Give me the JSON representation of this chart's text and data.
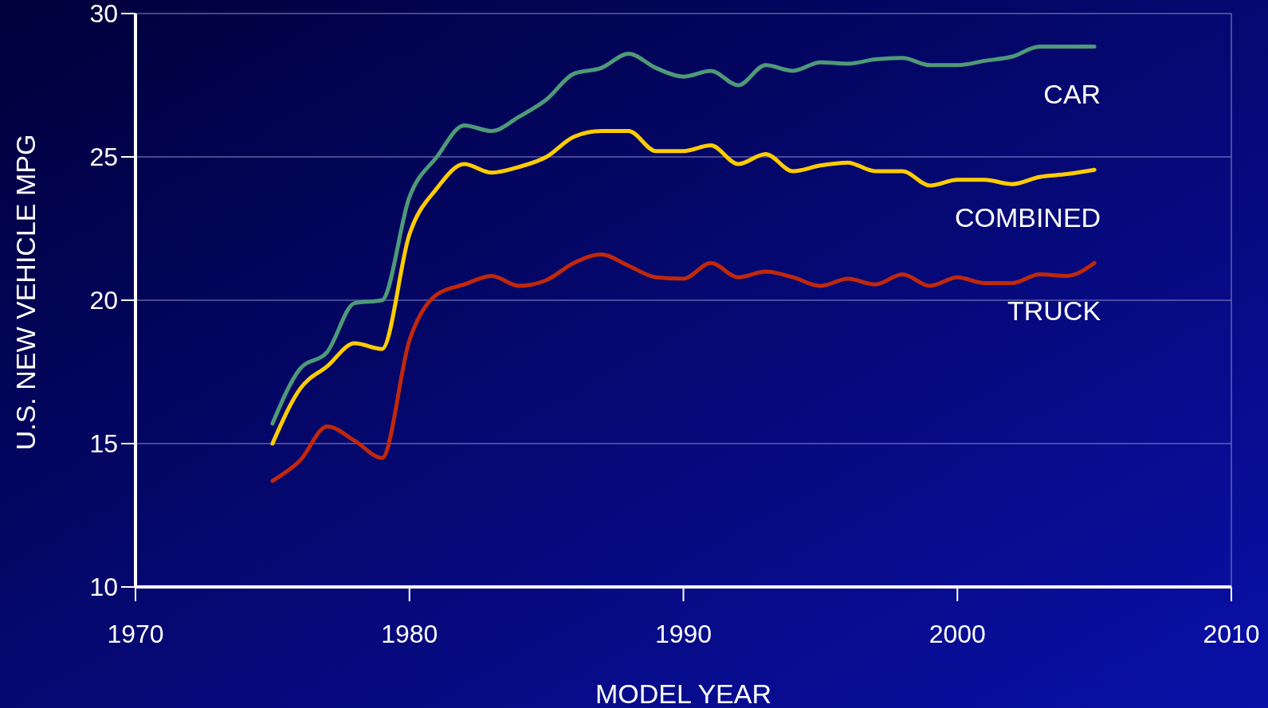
{
  "chart_data": {
    "type": "line",
    "xlabel": "MODEL YEAR",
    "ylabel": "U.S. NEW VEHICLE MPG",
    "x": [
      1975,
      1976,
      1977,
      1978,
      1979,
      1980,
      1981,
      1982,
      1983,
      1984,
      1985,
      1986,
      1987,
      1988,
      1989,
      1990,
      1991,
      1992,
      1993,
      1994,
      1995,
      1996,
      1997,
      1998,
      1999,
      2000,
      2001,
      2002,
      2003,
      2004,
      2005
    ],
    "xlim": [
      1970,
      2010
    ],
    "xticks": [
      1970,
      1980,
      1990,
      2000,
      2010
    ],
    "ylim": [
      10,
      30
    ],
    "yticks": [
      10,
      15,
      20,
      25,
      30
    ],
    "grid": "y",
    "line_style": "solid",
    "marker": "none",
    "series": [
      {
        "name": "CAR",
        "color": "#4e9a78",
        "values": [
          15.7,
          17.6,
          18.2,
          19.9,
          20.0,
          23.6,
          25.0,
          26.1,
          25.9,
          26.4,
          27.0,
          27.9,
          28.1,
          28.6,
          28.1,
          27.8,
          28.0,
          27.5,
          28.2,
          28.0,
          28.3,
          28.25,
          28.4,
          28.45,
          28.2,
          28.2,
          28.35,
          28.5,
          28.85,
          28.85,
          28.85
        ]
      },
      {
        "name": "COMBINED",
        "color": "#ffcc00",
        "values": [
          15.0,
          16.9,
          17.7,
          18.5,
          18.3,
          22.3,
          23.9,
          24.75,
          24.45,
          24.65,
          25.0,
          25.7,
          25.9,
          25.9,
          25.2,
          25.2,
          25.4,
          24.75,
          25.1,
          24.5,
          24.7,
          24.8,
          24.5,
          24.5,
          24.0,
          24.2,
          24.2,
          24.05,
          24.3,
          24.4,
          24.55
        ]
      },
      {
        "name": "TRUCK",
        "color": "#c0280c",
        "values": [
          13.7,
          14.4,
          15.6,
          15.1,
          14.5,
          18.6,
          20.2,
          20.55,
          20.85,
          20.5,
          20.7,
          21.3,
          21.6,
          21.2,
          20.8,
          20.75,
          21.3,
          20.8,
          21.0,
          20.8,
          20.5,
          20.75,
          20.55,
          20.9,
          20.5,
          20.8,
          20.6,
          20.6,
          20.9,
          20.85,
          21.3
        ]
      }
    ]
  }
}
